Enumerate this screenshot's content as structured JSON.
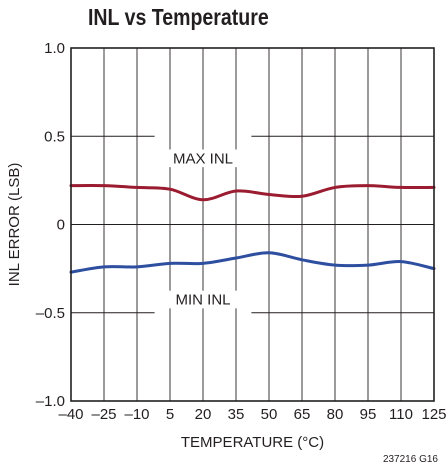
{
  "chart_data": {
    "type": "line",
    "title": "INL vs Temperature",
    "xlabel": "TEMPERATURE (°C)",
    "ylabel": "INL ERROR (LSB)",
    "xlim": [
      -40,
      125
    ],
    "ylim": [
      -1.0,
      1.0
    ],
    "x_ticks": [
      -40,
      -25,
      -10,
      5,
      20,
      35,
      50,
      65,
      80,
      95,
      110,
      125
    ],
    "x_tick_labels": [
      "–40",
      "–25",
      "–10",
      "5",
      "20",
      "35",
      "50",
      "65",
      "80",
      "95",
      "110",
      "125"
    ],
    "y_ticks": [
      1.0,
      0.5,
      0,
      -0.5,
      -1.0
    ],
    "y_tick_labels": [
      "1.0",
      "0.5",
      "0",
      "–0.5",
      "–1.0"
    ],
    "grid": true,
    "series": [
      {
        "name": "MAX INL",
        "color": "#9b1b30",
        "x": [
          -40,
          -25,
          -10,
          5,
          20,
          35,
          50,
          65,
          80,
          95,
          110,
          125
        ],
        "y": [
          0.22,
          0.22,
          0.21,
          0.2,
          0.14,
          0.19,
          0.17,
          0.16,
          0.21,
          0.22,
          0.21,
          0.21
        ]
      },
      {
        "name": "MIN INL",
        "color": "#2e4ea0",
        "x": [
          -40,
          -25,
          -10,
          5,
          20,
          35,
          50,
          65,
          80,
          95,
          110,
          125
        ],
        "y": [
          -0.27,
          -0.24,
          -0.24,
          -0.22,
          -0.22,
          -0.19,
          -0.16,
          -0.2,
          -0.23,
          -0.23,
          -0.21,
          -0.25
        ]
      }
    ],
    "annotations": [
      "MAX INL",
      "MIN INL"
    ],
    "footnote": "237216 G16"
  }
}
